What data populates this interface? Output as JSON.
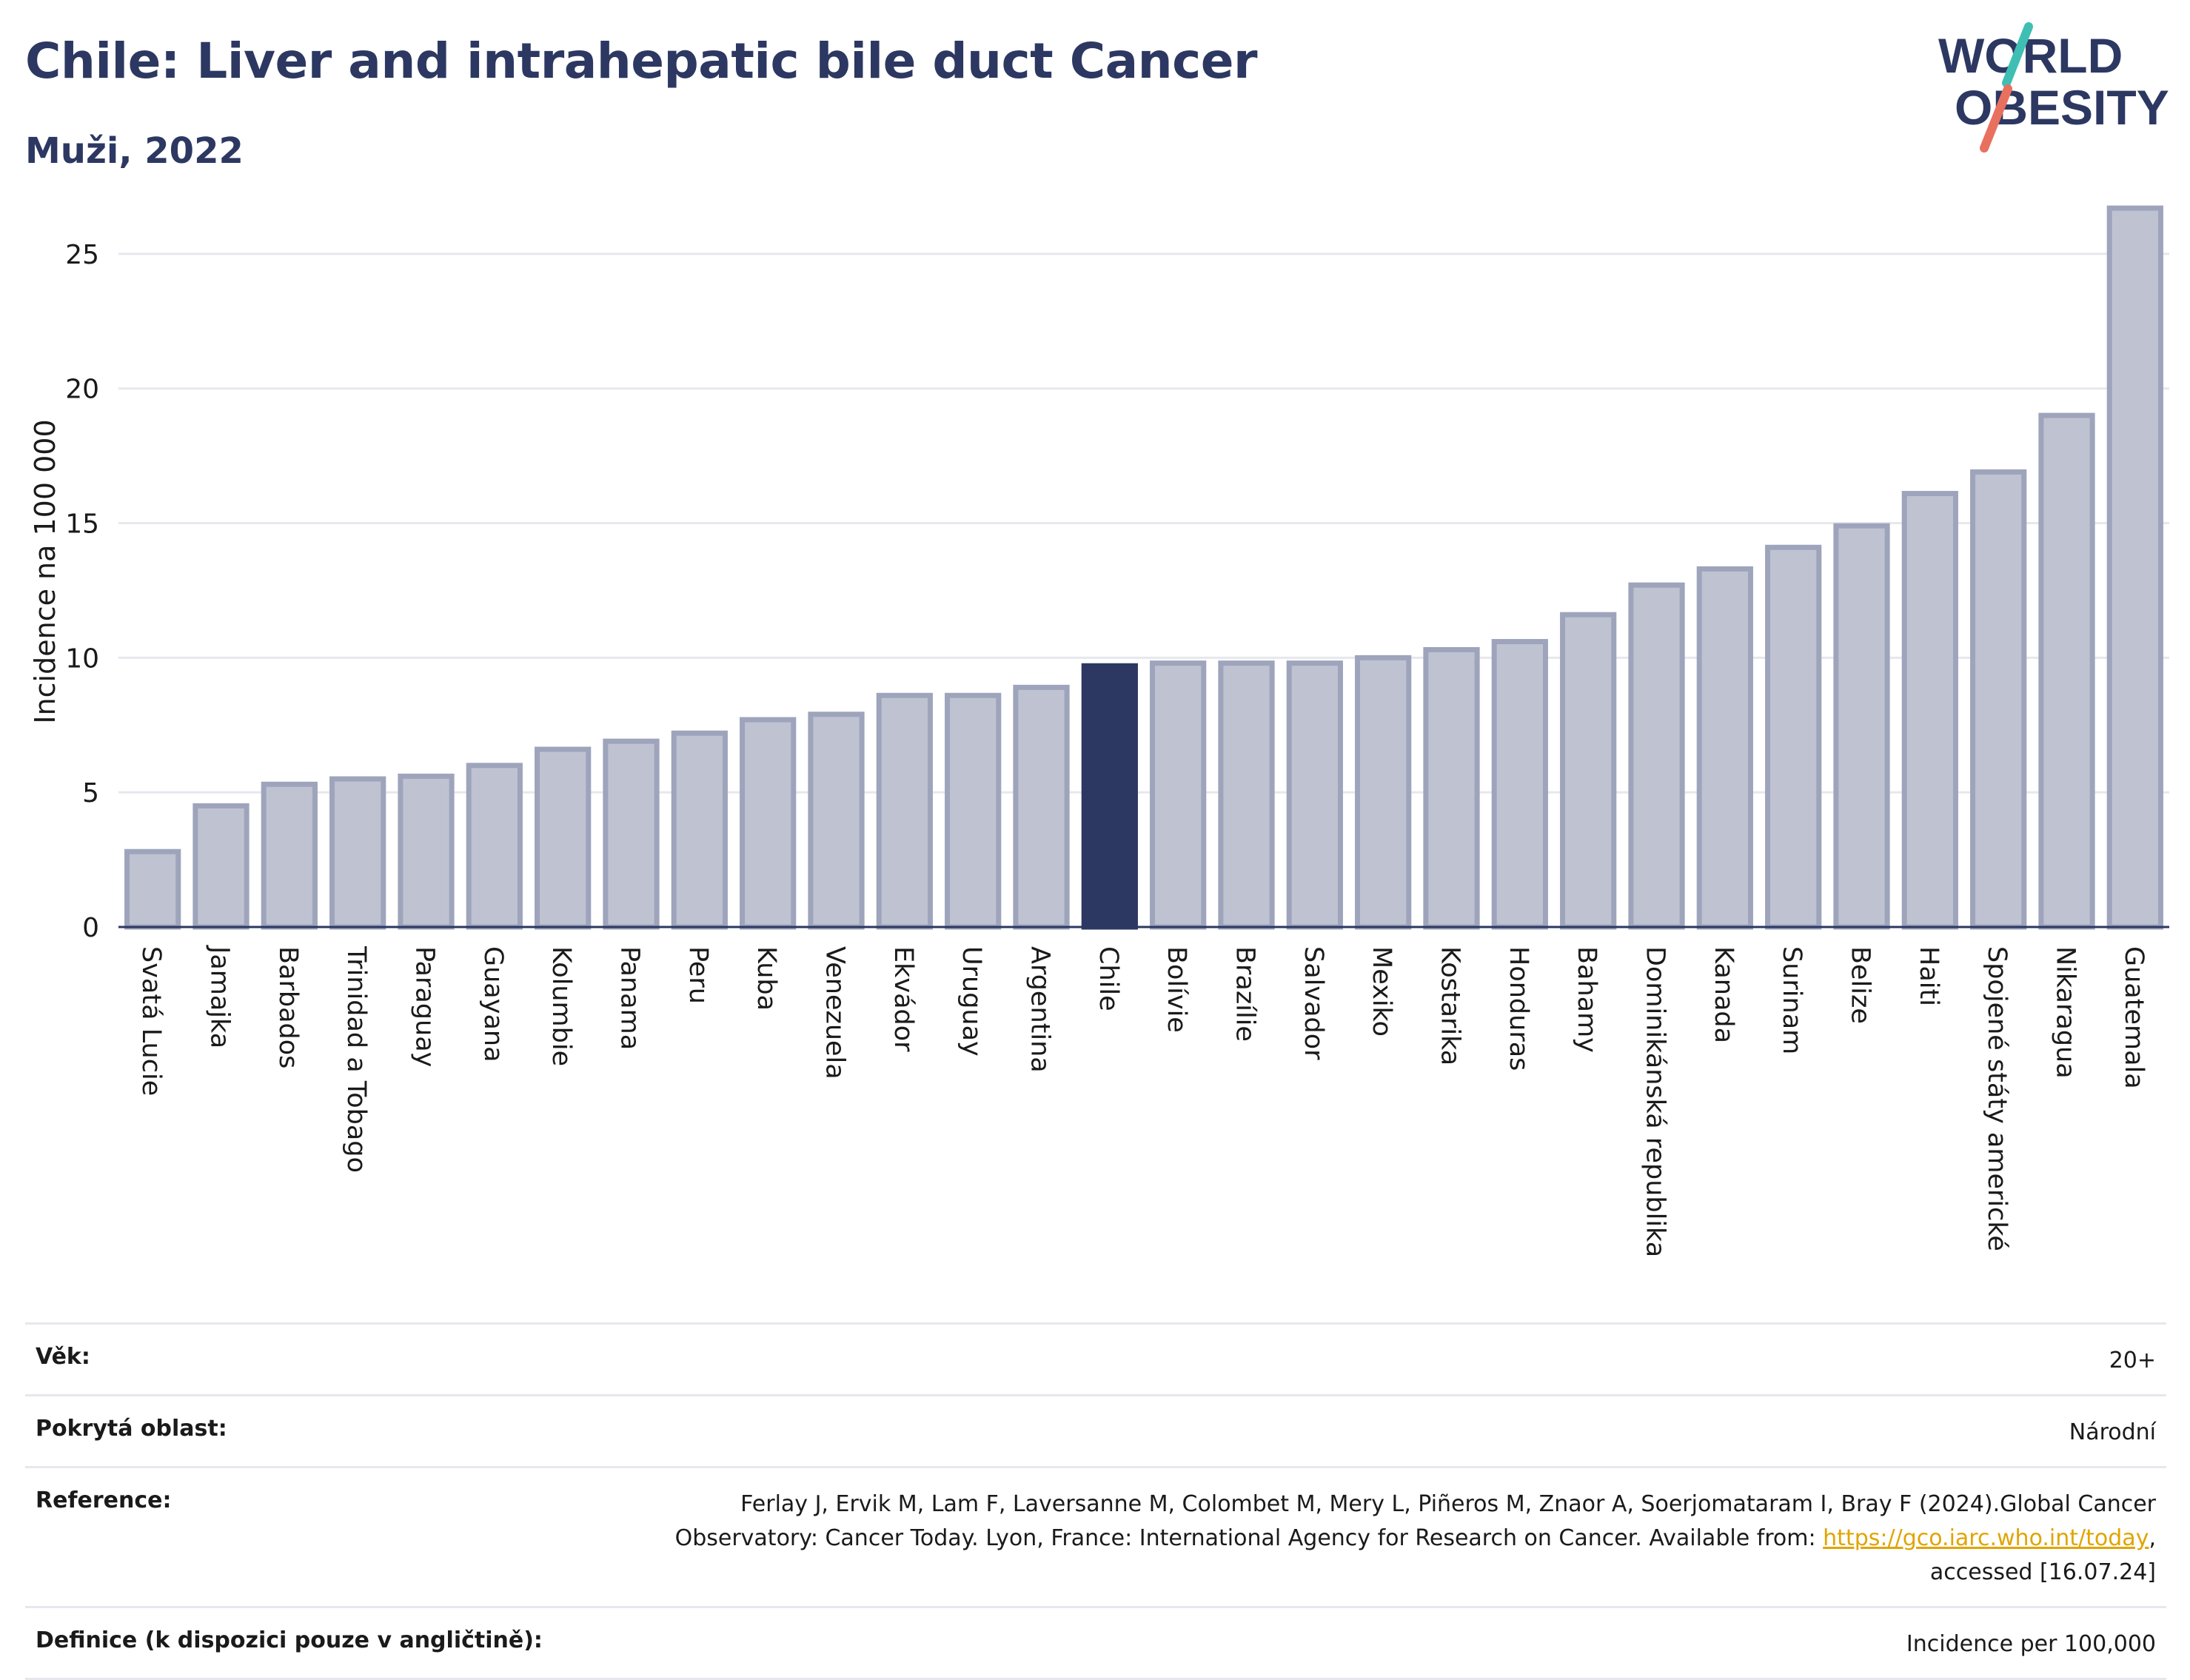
{
  "header": {
    "title": "Chile: Liver and intrahepatic bile duct Cancer",
    "subtitle": "Muži, 2022"
  },
  "logo": {
    "line1": "WORLD",
    "line2": "OBESITY",
    "icon": "world-obesity-logo"
  },
  "colors": {
    "title": "#2c3862",
    "bar": "#bfc3d1",
    "bar_stroke": "#9ea4bb",
    "highlight": "#2c3862",
    "grid": "#e6e8ee",
    "link": "#e0a500",
    "logo_teal": "#3fbfb3",
    "logo_coral": "#e8705f"
  },
  "chart_data": {
    "type": "bar",
    "ylabel": "Incidence na 100 000",
    "xlabel": "",
    "ylim": [
      0,
      27.5
    ],
    "yticks": [
      0,
      5,
      10,
      15,
      20,
      25
    ],
    "grid": true,
    "highlight": "Chile",
    "categories": [
      "Svatá Lucie",
      "Jamajka",
      "Barbados",
      "Trinidad a Tobago",
      "Paraguay",
      "Guayana",
      "Kolumbie",
      "Panama",
      "Peru",
      "Kuba",
      "Venezuela",
      "Ekvádor",
      "Uruguay",
      "Argentina",
      "Chile",
      "Bolívie",
      "Brazílie",
      "Salvador",
      "Mexiko",
      "Kostarika",
      "Honduras",
      "Bahamy",
      "Dominikánská republika",
      "Kanada",
      "Surinam",
      "Belize",
      "Haiti",
      "Spojené státy americké",
      "Nikaragua",
      "Guatemala"
    ],
    "values": [
      2.8,
      4.5,
      5.3,
      5.5,
      5.6,
      6.0,
      6.6,
      6.9,
      7.2,
      7.7,
      7.9,
      8.6,
      8.6,
      8.9,
      9.7,
      9.8,
      9.8,
      9.8,
      10.0,
      10.3,
      10.6,
      11.6,
      12.7,
      13.3,
      14.1,
      14.9,
      16.1,
      16.9,
      19.0,
      26.7
    ]
  },
  "meta": {
    "age_label": "Věk:",
    "age_value": "20+",
    "area_label": "Pokrytá oblast:",
    "area_value": "Národní",
    "reference_label": "Reference:",
    "reference_line1": "Ferlay J, Ervik M, Lam F, Laversanne M, Colombet M, Mery L, Piñeros M, Znaor A, Soerjomataram I, Bray F (2024).Global Cancer",
    "reference_line2_pre": "Observatory: Cancer Today. Lyon, France: International Agency for Research on Cancer. Available from: ",
    "reference_link": "https://gco.iarc.who.int/today",
    "reference_line2_post": ",",
    "reference_line3": "accessed [16.07.24]",
    "definition_label": "Definice (k dispozici pouze v angličtině):",
    "definition_value": "Incidence per 100,000"
  }
}
